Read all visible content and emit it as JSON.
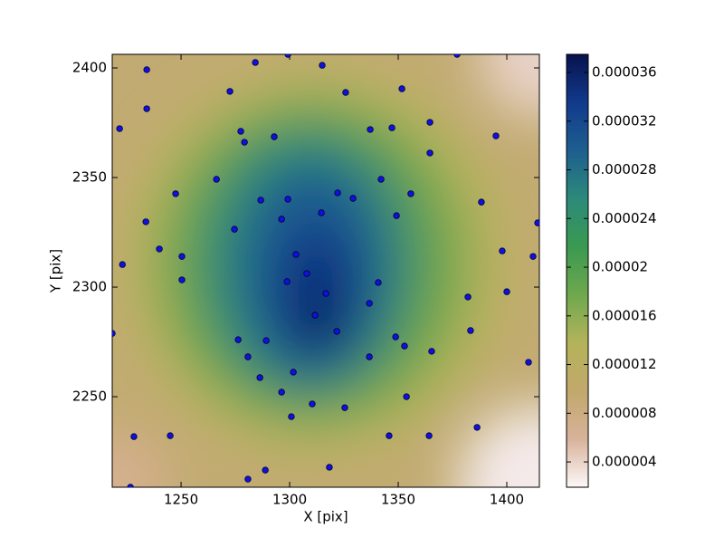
{
  "chart_data": {
    "type": "scatter",
    "x_label": "X [pix]",
    "y_label": "Y [pix]",
    "xlim": [
      1218.3,
      1415
    ],
    "ylim": [
      2208.7,
      2406.2
    ],
    "xticks": [
      1250,
      1300,
      1350,
      1400
    ],
    "yticks": [
      2250,
      2300,
      2350,
      2400
    ],
    "grid": false,
    "point_color": "#1010e0",
    "colorbar": {
      "lim": [
        1.92e-06,
        3.749e-05
      ],
      "ticks": [
        4e-06,
        8e-06,
        1.2e-05,
        1.6e-05,
        2e-05,
        2.4e-05,
        2.8e-05,
        3.2e-05,
        3.6e-05
      ],
      "colormap": [
        "#fdf8f8",
        "#d7b29a",
        "#c2a86c",
        "#b4b35a",
        "#6fa84e",
        "#3a9950",
        "#2c8a7a",
        "#1d5e8f",
        "#123a8c",
        "#07124e"
      ]
    },
    "x": [
      1218.3,
      1234.2,
      1234.2,
      1221.7,
      1272.5,
      1284.2,
      1299.2,
      1315,
      1325.8,
      1351.7,
      1377.1,
      1277.5,
      1279.2,
      1292.9,
      1337.1,
      1347.1,
      1364.6,
      1364.6,
      1395,
      1247.5,
      1266.3,
      1286.7,
      1299.2,
      1322.1,
      1329.2,
      1342.1,
      1355.8,
      1388.3,
      1233.8,
      1296.3,
      1314.6,
      1349.2,
      1274.6,
      1240,
      1250.4,
      1223,
      1302.9,
      1397.9,
      1412.1,
      1414.2,
      1250.4,
      1298.8,
      1307.9,
      1340.8,
      1316.7,
      1400,
      1382.1,
      1336.7,
      1311.7,
      1321.7,
      1276.3,
      1289.2,
      1348.8,
      1352.9,
      1365.4,
      1383.3,
      1280.8,
      1336.7,
      1410,
      1286.3,
      1301.7,
      1296.3,
      1310.4,
      1325.4,
      1353.8,
      1300.8,
      1386.3,
      1228.3,
      1245,
      1345.8,
      1364.2,
      1288.8,
      1318.3,
      1280.8,
      1226.7
    ],
    "values": [
      2278.9,
      2399.2,
      2381.4,
      2372.3,
      2389.3,
      2402.5,
      2406.2,
      2401.2,
      2388.8,
      2390.5,
      2406.2,
      2371.1,
      2366.1,
      2368.6,
      2371.9,
      2372.7,
      2375.2,
      2361.2,
      2369,
      2342.6,
      2349.2,
      2339.7,
      2340.1,
      2343,
      2340.5,
      2349.2,
      2342.6,
      2338.8,
      2329.8,
      2331,
      2333.9,
      2332.6,
      2326.4,
      2317.4,
      2314,
      2310.3,
      2314.9,
      2316.5,
      2314,
      2329.3,
      2303.3,
      2302.5,
      2306.2,
      2302.1,
      2297.1,
      2297.9,
      2295.5,
      2292.6,
      2287.2,
      2279.8,
      2276,
      2275.6,
      2277.3,
      2273.1,
      2270.7,
      2280.2,
      2268.2,
      2268.2,
      2265.7,
      2258.7,
      2261.2,
      2252.1,
      2246.7,
      2245,
      2250,
      2240.9,
      2236,
      2231.8,
      2232.2,
      2232.2,
      2232.2,
      2216.5,
      2217.8,
      2212.4,
      2208.7
    ]
  }
}
